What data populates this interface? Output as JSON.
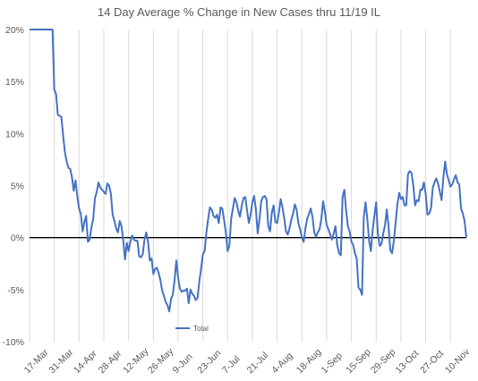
{
  "chart_data": {
    "type": "line",
    "title": "14 Day Average % Change in New Cases thru 11/19 IL",
    "xlabel": "",
    "ylabel": "",
    "ylim": [
      -10,
      20
    ],
    "yticks": [
      "-10%",
      "-5%",
      "0%",
      "5%",
      "10%",
      "15%",
      "20%"
    ],
    "yticks_values": [
      -10,
      -5,
      0,
      5,
      10,
      15,
      20
    ],
    "x_start": "17-Mar",
    "x_end": "19-Nov",
    "xticks": [
      "17-Mar",
      "31-Mar",
      "14-Apr",
      "28-Apr",
      "12-May",
      "26-May",
      "9-Jun",
      "23-Jun",
      "7-Jul",
      "21-Jul",
      "4-Aug",
      "18-Aug",
      "1-Sep",
      "15-Sep",
      "29-Sep",
      "13-Oct",
      "27-Oct",
      "10-Nov"
    ],
    "grid": "vertical",
    "legend_position": "bottom-center",
    "series": [
      {
        "name": "Total",
        "color": "#4472C4",
        "values": [
          20,
          20,
          20,
          20,
          20,
          20,
          20,
          20,
          20,
          20,
          20,
          20,
          20,
          20,
          14.2,
          13.8,
          11.8,
          11.7,
          11.6,
          9.8,
          8.2,
          7.3,
          6.7,
          6.6,
          5.8,
          4.5,
          5.5,
          4,
          2.8,
          2.3,
          0.6,
          1.5,
          2.1,
          -0.4,
          -0.2,
          1,
          1.8,
          3.8,
          4.4,
          5.3,
          4.8,
          4.6,
          4.4,
          4.2,
          5.2,
          5,
          4.2,
          2.2,
          1.6,
          0.9,
          0.5,
          1.6,
          1.1,
          -0.3,
          -2.1,
          -0.5,
          -1.3,
          -0.4,
          0.2,
          -0.2,
          -0.3,
          -0.3,
          -1.8,
          -1.9,
          -1.6,
          -0.2,
          0.5,
          -0.4,
          -2.2,
          -2,
          -3.5,
          -3,
          -2.9,
          -3.4,
          -4.1,
          -5.1,
          -5.6,
          -6.2,
          -6.5,
          -7.1,
          -5.9,
          -5.5,
          -4.1,
          -2.2,
          -3.8,
          -4.9,
          -5.2,
          -5.1,
          -5.1,
          -4.9,
          -6.3,
          -5,
          -5.4,
          -5.6,
          -6,
          -5.8,
          -4.2,
          -3,
          -1.6,
          -1.3,
          0.5,
          1.8,
          2.9,
          2.7,
          2.1,
          1.9,
          2.2,
          1.4,
          2.9,
          2.8,
          1.7,
          0.5,
          -1.3,
          -0.8,
          1.8,
          2.8,
          3.8,
          3.4,
          2.6,
          2,
          3.1,
          3.8,
          3.9,
          2.6,
          1.4,
          2.2,
          3.4,
          4,
          2.7,
          0.4,
          1.7,
          3.5,
          3.9,
          4,
          3.7,
          1.1,
          0.6,
          2.4,
          3.1,
          1.5,
          1.4,
          2.4,
          3.7,
          2.9,
          1.9,
          0.6,
          0.3,
          0.9,
          1.7,
          2.3,
          3.2,
          2.7,
          1.4,
          0.8,
          0,
          -0.4,
          0.9,
          1.8,
          2.3,
          2.8,
          2,
          0.5,
          0.1,
          0.5,
          0.8,
          1.8,
          3.5,
          2.5,
          1.2,
          0.8,
          0.3,
          -0.2,
          0.4,
          1.1,
          -0.7,
          -1.5,
          -1.7,
          3.9,
          4.6,
          2.6,
          1.1,
          0.6,
          -0.4,
          -0.7,
          -1.5,
          -2,
          -4.8,
          -5,
          -5.5,
          2,
          3.4,
          1.8,
          -0.3,
          -1.3,
          0.7,
          2.1,
          3.4,
          0.3,
          -0.8,
          -0.6,
          0.4,
          1.2,
          2.7,
          1.1,
          -1.2,
          -1.5,
          -0.3,
          1.4,
          3.2,
          4.3,
          3.7,
          3.9,
          3.1,
          3.1,
          6.1,
          6.4,
          6.2,
          5,
          3.1,
          3.6,
          3.5,
          4.6,
          4.6,
          5.3,
          4.2,
          2.2,
          2.3,
          2.8,
          4.8,
          5.3,
          5.7,
          5.2,
          4.4,
          3.6,
          5.8,
          7.3,
          6.1,
          5.5,
          4.9,
          5.1,
          5.6,
          6,
          5.3,
          5.1,
          2.8,
          2.3,
          1.6,
          0
        ]
      }
    ]
  }
}
